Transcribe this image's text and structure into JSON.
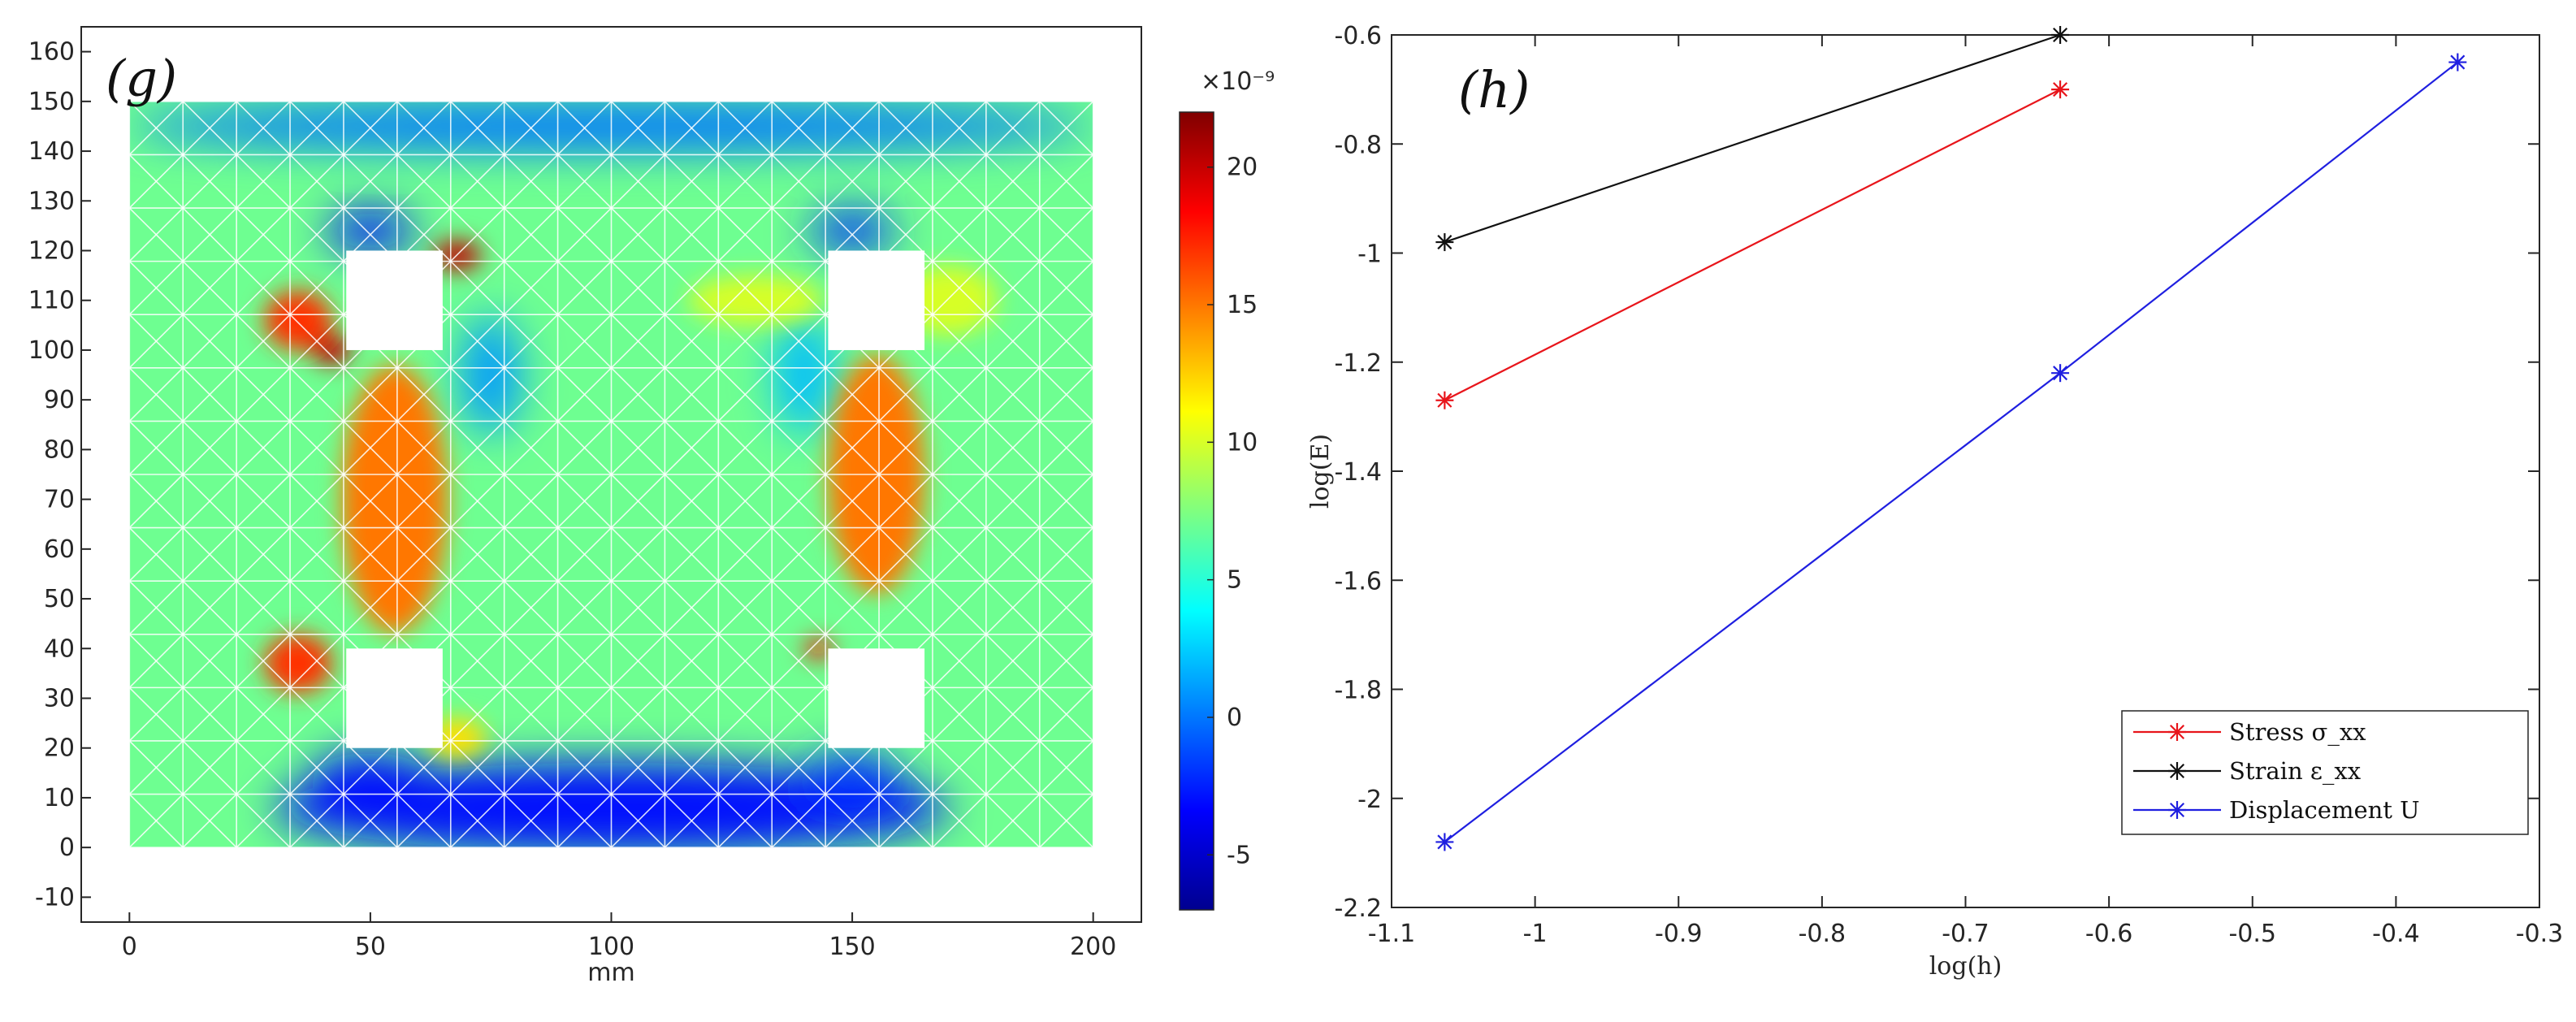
{
  "chart_data": [
    {
      "type": "heatmap",
      "panel_label": "(g)",
      "xlabel": "mm",
      "ylabel": "",
      "xlim": [
        -10,
        210
      ],
      "ylim": [
        -15,
        165
      ],
      "xticks": [
        0,
        50,
        100,
        150,
        200
      ],
      "yticks": [
        -10,
        0,
        10,
        20,
        30,
        40,
        50,
        60,
        70,
        80,
        90,
        100,
        110,
        120,
        130,
        140,
        150,
        160
      ],
      "domain": {
        "x": [
          0,
          200
        ],
        "y": [
          0,
          150
        ]
      },
      "holes": [
        {
          "x": [
            45,
            65
          ],
          "y": [
            100,
            120
          ]
        },
        {
          "x": [
            145,
            165
          ],
          "y": [
            100,
            120
          ]
        },
        {
          "x": [
            45,
            65
          ],
          "y": [
            20,
            40
          ]
        },
        {
          "x": [
            145,
            165
          ],
          "y": [
            20,
            40
          ]
        }
      ],
      "colorbar": {
        "label": "×10⁻⁹",
        "min": -7,
        "max": 22,
        "ticks": [
          -5,
          0,
          5,
          10,
          15,
          20
        ],
        "colormap": "jet"
      },
      "hotspots": [
        {
          "x": 55,
          "y": 70,
          "rx": 11,
          "ry": 27,
          "value": 15
        },
        {
          "x": 155,
          "y": 75,
          "rx": 10,
          "ry": 24,
          "value": 15
        },
        {
          "x": 35,
          "y": 106,
          "rx": 7,
          "ry": 6,
          "value": 17
        },
        {
          "x": 42,
          "y": 100,
          "rx": 4,
          "ry": 3,
          "value": 20
        },
        {
          "x": 35,
          "y": 37,
          "rx": 7,
          "ry": 6,
          "value": 17
        },
        {
          "x": 68,
          "y": 119,
          "rx": 5,
          "ry": 3,
          "value": 20
        },
        {
          "x": 68,
          "y": 22,
          "rx": 6,
          "ry": 4,
          "value": 12
        },
        {
          "x": 143,
          "y": 40,
          "rx": 3,
          "ry": 2,
          "value": 18
        },
        {
          "x": 130,
          "y": 110,
          "rx": 14,
          "ry": 5,
          "value": 10
        },
        {
          "x": 170,
          "y": 110,
          "rx": 10,
          "ry": 7,
          "value": 10
        }
      ],
      "coldspots": [
        {
          "x": 100,
          "y": 8,
          "rx": 70,
          "ry": 9,
          "value": -3
        },
        {
          "x": 100,
          "y": 145,
          "rx": 100,
          "ry": 5,
          "value": 0
        },
        {
          "x": 50,
          "y": 124,
          "rx": 9,
          "ry": 4,
          "value": -3
        },
        {
          "x": 150,
          "y": 124,
          "rx": 9,
          "ry": 4,
          "value": -2
        },
        {
          "x": 50,
          "y": 14,
          "rx": 12,
          "ry": 5,
          "value": -3
        },
        {
          "x": 150,
          "y": 14,
          "rx": 10,
          "ry": 5,
          "value": -2
        },
        {
          "x": 75,
          "y": 95,
          "rx": 6,
          "ry": 12,
          "value": 1
        },
        {
          "x": 140,
          "y": 95,
          "rx": 6,
          "ry": 12,
          "value": 2
        }
      ]
    },
    {
      "type": "line",
      "panel_label": "(h)",
      "xlabel": "log(h)",
      "ylabel": "log(E)",
      "xlim": [
        -1.1,
        -0.3
      ],
      "ylim": [
        -2.2,
        -0.6
      ],
      "xticks": [
        -1.1,
        -1,
        -0.9,
        -0.8,
        -0.7,
        -0.6,
        -0.5,
        -0.4,
        -0.3
      ],
      "yticks": [
        -2.2,
        -2,
        -1.8,
        -1.6,
        -1.4,
        -1.2,
        -1,
        -0.8,
        -0.6
      ],
      "xtick_labels": [
        "-1.1",
        "-1",
        "-0.9",
        "-0.8",
        "-0.7",
        "-0.6",
        "-0.5",
        "-0.4",
        "-0.3"
      ],
      "ytick_labels": [
        "-2.2",
        "-2",
        "-1.8",
        "-1.6",
        "-1.4",
        "-1.2",
        "-1",
        "-0.8",
        "-0.6"
      ],
      "legend_position": "bottom-right",
      "series": [
        {
          "name": "Stress σ_xx",
          "color": "#e8151b",
          "x": [
            -1.063,
            -0.634
          ],
          "y": [
            -1.27,
            -0.7
          ]
        },
        {
          "name": "Strain ε_xx",
          "color": "#111111",
          "x": [
            -1.063,
            -0.634
          ],
          "y": [
            -0.98,
            -0.6
          ]
        },
        {
          "name": "Displacement U",
          "color": "#1f1fe0",
          "x": [
            -1.063,
            -0.634,
            -0.357
          ],
          "y": [
            -2.08,
            -1.22,
            -0.65
          ]
        }
      ]
    }
  ]
}
